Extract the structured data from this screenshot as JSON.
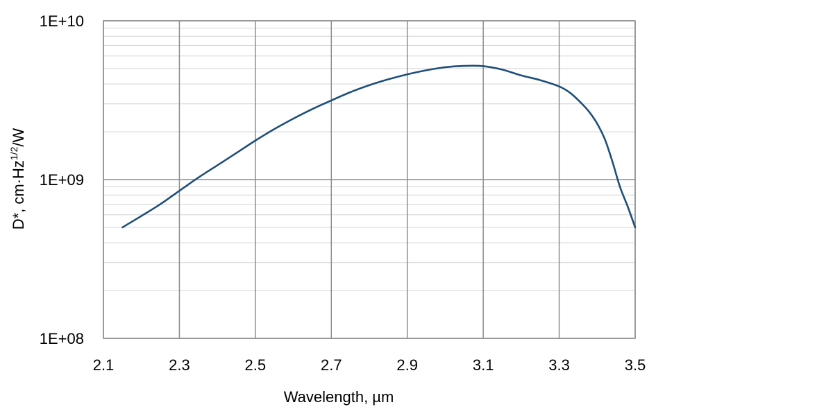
{
  "chart_data": {
    "type": "line",
    "title": "",
    "xlabel": "Wavelength, µm",
    "ylabel": {
      "base": "D*, cm",
      "dot": "·",
      "hz": "Hz",
      "exponent": "1/2",
      "tail": "/W"
    },
    "xlim": [
      2.1,
      3.5
    ],
    "ylim": [
      100000000,
      10000000000
    ],
    "yscale": "log",
    "grid": true,
    "legend": "none",
    "x_ticks": [
      "2.1",
      "2.3",
      "2.5",
      "2.7",
      "2.9",
      "3.1",
      "3.3",
      "3.5"
    ],
    "y_ticks": [
      "1E+08",
      "1E+09",
      "1E+10"
    ],
    "series": [
      {
        "color": "#1f4e79",
        "x": [
          2.15,
          2.2,
          2.25,
          2.3,
          2.35,
          2.4,
          2.45,
          2.5,
          2.55,
          2.6,
          2.65,
          2.7,
          2.75,
          2.8,
          2.85,
          2.9,
          2.95,
          3.0,
          3.05,
          3.1,
          3.15,
          3.2,
          3.25,
          3.3,
          3.33,
          3.36,
          3.38,
          3.4,
          3.42,
          3.44,
          3.46,
          3.48,
          3.5
        ],
        "y": [
          500000000,
          590000000,
          700000000,
          850000000,
          1030000000,
          1230000000,
          1470000000,
          1760000000,
          2080000000,
          2420000000,
          2780000000,
          3150000000,
          3550000000,
          3930000000,
          4280000000,
          4600000000,
          4880000000,
          5100000000,
          5200000000,
          5180000000,
          4930000000,
          4530000000,
          4230000000,
          3860000000,
          3500000000,
          3000000000,
          2650000000,
          2250000000,
          1800000000,
          1300000000,
          900000000,
          680000000,
          500000000
        ]
      }
    ]
  }
}
